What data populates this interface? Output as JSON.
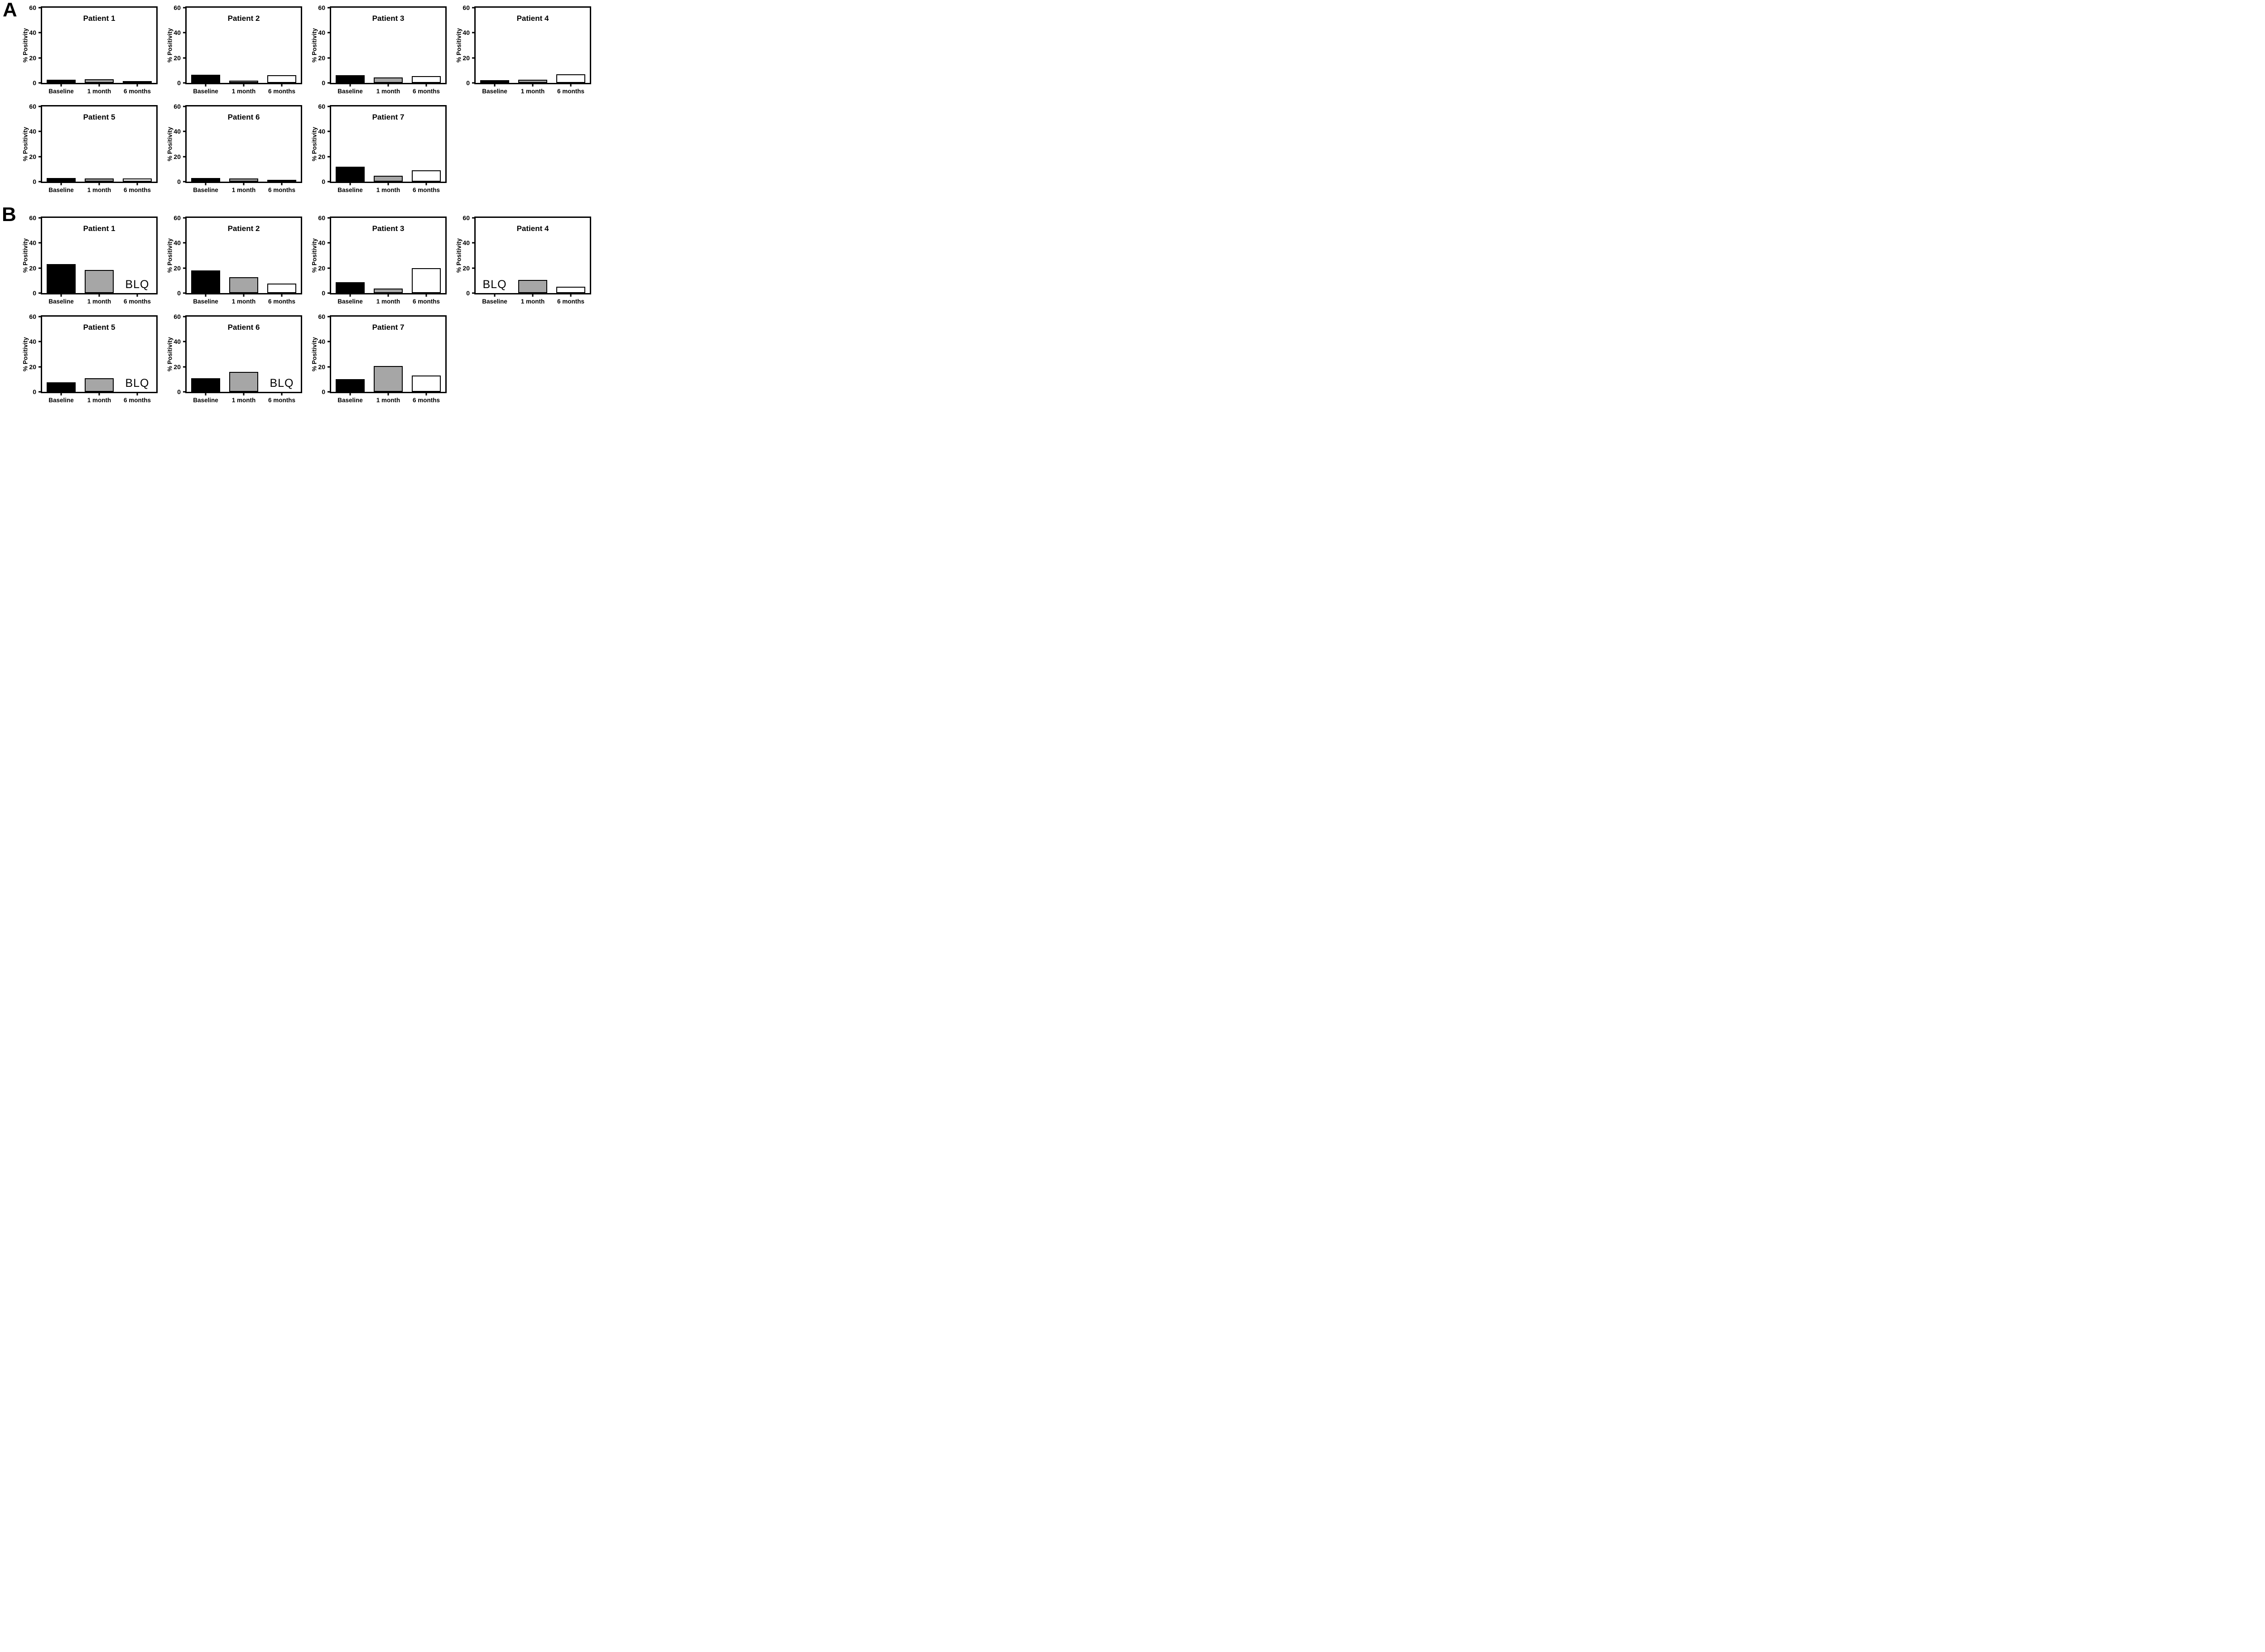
{
  "figure": {
    "panels": [
      {
        "label": "A"
      },
      {
        "label": "B"
      }
    ],
    "axis": {
      "ylabel": "% Positivity",
      "ylim": [
        0,
        60
      ],
      "yticks_top_to_bottom": [
        60,
        40,
        20,
        0
      ]
    },
    "categories": [
      "Baseline",
      "1 month",
      "6 months"
    ],
    "series_colors": {
      "baseline": "#000000",
      "one_month": "#a6a6a6",
      "six_months": "#ffffff"
    },
    "blq_label": "BLQ"
  },
  "chart_data": [
    {
      "type": "bar",
      "panel": "A",
      "title": "Patient 1",
      "categories": [
        "Baseline",
        "1 month",
        "6 months"
      ],
      "values": [
        2.5,
        3,
        1.3
      ],
      "ylabel": "% Positivity",
      "ylim": [
        0,
        60
      ]
    },
    {
      "type": "bar",
      "panel": "A",
      "title": "Patient 2",
      "categories": [
        "Baseline",
        "1 month",
        "6 months"
      ],
      "values": [
        6.5,
        1.8,
        6.3
      ],
      "ylabel": "% Positivity",
      "ylim": [
        0,
        60
      ]
    },
    {
      "type": "bar",
      "panel": "A",
      "title": "Patient 3",
      "categories": [
        "Baseline",
        "1 month",
        "6 months"
      ],
      "values": [
        6,
        4.3,
        5.5
      ],
      "ylabel": "% Positivity",
      "ylim": [
        0,
        60
      ]
    },
    {
      "type": "bar",
      "panel": "A",
      "title": "Patient 4",
      "categories": [
        "Baseline",
        "1 month",
        "6 months"
      ],
      "values": [
        2.2,
        2.4,
        6.8
      ],
      "ylabel": "% Positivity",
      "ylim": [
        0,
        60
      ]
    },
    {
      "type": "bar",
      "panel": "A",
      "title": "Patient 5",
      "categories": [
        "Baseline",
        "1 month",
        "6 months"
      ],
      "values": [
        2.8,
        2.6,
        2.7
      ],
      "ylabel": "% Positivity",
      "ylim": [
        0,
        60
      ]
    },
    {
      "type": "bar",
      "panel": "A",
      "title": "Patient 6",
      "categories": [
        "Baseline",
        "1 month",
        "6 months"
      ],
      "values": [
        2.8,
        2.7,
        1.5
      ],
      "ylabel": "% Positivity",
      "ylim": [
        0,
        60
      ]
    },
    {
      "type": "bar",
      "panel": "A",
      "title": "Patient 7",
      "categories": [
        "Baseline",
        "1 month",
        "6 months"
      ],
      "values": [
        12,
        4.6,
        9.2
      ],
      "ylabel": "% Positivity",
      "ylim": [
        0,
        60
      ]
    },
    {
      "type": "bar",
      "panel": "B",
      "title": "Patient 1",
      "categories": [
        "Baseline",
        "1 month",
        "6 months"
      ],
      "values": [
        23,
        18.5,
        "BLQ"
      ],
      "ylabel": "% Positivity",
      "ylim": [
        0,
        60
      ]
    },
    {
      "type": "bar",
      "panel": "B",
      "title": "Patient 2",
      "categories": [
        "Baseline",
        "1 month",
        "6 months"
      ],
      "values": [
        18,
        12.5,
        7.5
      ],
      "ylabel": "% Positivity",
      "ylim": [
        0,
        60
      ]
    },
    {
      "type": "bar",
      "panel": "B",
      "title": "Patient 3",
      "categories": [
        "Baseline",
        "1 month",
        "6 months"
      ],
      "values": [
        8.5,
        3.8,
        19.8
      ],
      "ylabel": "% Positivity",
      "ylim": [
        0,
        60
      ]
    },
    {
      "type": "bar",
      "panel": "B",
      "title": "Patient 4",
      "categories": [
        "Baseline",
        "1 month",
        "6 months"
      ],
      "values": [
        "BLQ",
        10.5,
        5
      ],
      "ylabel": "% Positivity",
      "ylim": [
        0,
        60
      ]
    },
    {
      "type": "bar",
      "panel": "B",
      "title": "Patient 5",
      "categories": [
        "Baseline",
        "1 month",
        "6 months"
      ],
      "values": [
        7.5,
        11,
        "BLQ"
      ],
      "ylabel": "% Positivity",
      "ylim": [
        0,
        60
      ]
    },
    {
      "type": "bar",
      "panel": "B",
      "title": "Patient 6",
      "categories": [
        "Baseline",
        "1 month",
        "6 months"
      ],
      "values": [
        11,
        16,
        "BLQ"
      ],
      "ylabel": "% Positivity",
      "ylim": [
        0,
        60
      ]
    },
    {
      "type": "bar",
      "panel": "B",
      "title": "Patient 7",
      "categories": [
        "Baseline",
        "1 month",
        "6 months"
      ],
      "values": [
        10,
        20.5,
        13
      ],
      "ylabel": "% Positivity",
      "ylim": [
        0,
        60
      ]
    }
  ]
}
